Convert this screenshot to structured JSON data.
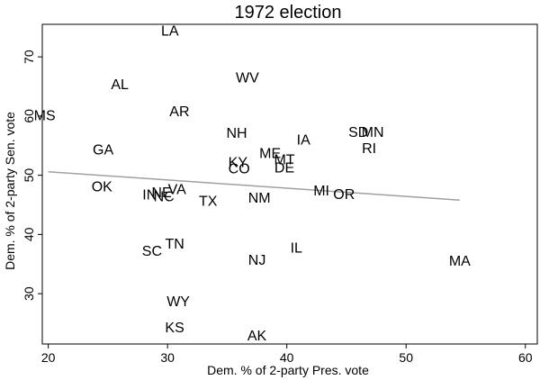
{
  "chart_data": {
    "type": "scatter",
    "title": "1972 election",
    "xlabel": "Dem. % of 2-party Pres. vote",
    "ylabel": "Dem. % of 2-party Sen. vote",
    "xlim": [
      19.5,
      61
    ],
    "ylim": [
      21.5,
      75.5
    ],
    "xticks": [
      "20",
      "30",
      "40",
      "50",
      "60"
    ],
    "yticks": [
      "30",
      "40",
      "50",
      "60",
      "70"
    ],
    "xtick_values": [
      20,
      30,
      40,
      50,
      60
    ],
    "ytick_values": [
      30,
      40,
      50,
      60,
      70
    ],
    "grid": false,
    "fit_line": {
      "x": [
        20,
        54.5
      ],
      "y": [
        50.6,
        45.8
      ],
      "color": "#a0a0a0"
    },
    "points": [
      {
        "label": "LA",
        "x": 30.2,
        "y": 74.3
      },
      {
        "label": "WV",
        "x": 36.7,
        "y": 66.4
      },
      {
        "label": "AL",
        "x": 26.0,
        "y": 65.2
      },
      {
        "label": "AR",
        "x": 31.0,
        "y": 60.7
      },
      {
        "label": "MS",
        "x": 19.7,
        "y": 60.0
      },
      {
        "label": "NH",
        "x": 35.8,
        "y": 57.0
      },
      {
        "label": "SD",
        "x": 46.0,
        "y": 57.2
      },
      {
        "label": "MN",
        "x": 47.2,
        "y": 57.2
      },
      {
        "label": "IA",
        "x": 41.4,
        "y": 55.9
      },
      {
        "label": "RI",
        "x": 46.9,
        "y": 54.4
      },
      {
        "label": "GA",
        "x": 24.6,
        "y": 54.2
      },
      {
        "label": "ME",
        "x": 38.6,
        "y": 53.6
      },
      {
        "label": "MT",
        "x": 39.8,
        "y": 52.5
      },
      {
        "label": "KY",
        "x": 35.9,
        "y": 52.1
      },
      {
        "label": "DE",
        "x": 39.8,
        "y": 51.2
      },
      {
        "label": "CO",
        "x": 36.0,
        "y": 51.0
      },
      {
        "label": "OK",
        "x": 24.5,
        "y": 48.0
      },
      {
        "label": "MI",
        "x": 42.9,
        "y": 47.3
      },
      {
        "label": "VA",
        "x": 30.8,
        "y": 47.5
      },
      {
        "label": "NE",
        "x": 29.5,
        "y": 47.0
      },
      {
        "label": "IN",
        "x": 28.5,
        "y": 46.6
      },
      {
        "label": "NC",
        "x": 29.7,
        "y": 46.3
      },
      {
        "label": "OR",
        "x": 44.8,
        "y": 46.7
      },
      {
        "label": "NM",
        "x": 37.7,
        "y": 46.1
      },
      {
        "label": "TX",
        "x": 33.4,
        "y": 45.5
      },
      {
        "label": "TN",
        "x": 30.6,
        "y": 38.3
      },
      {
        "label": "IL",
        "x": 40.8,
        "y": 37.6
      },
      {
        "label": "SC",
        "x": 28.7,
        "y": 37.1
      },
      {
        "label": "NJ",
        "x": 37.5,
        "y": 35.6
      },
      {
        "label": "MA",
        "x": 54.5,
        "y": 35.4
      },
      {
        "label": "WY",
        "x": 30.9,
        "y": 28.6
      },
      {
        "label": "KS",
        "x": 30.6,
        "y": 24.2
      },
      {
        "label": "AK",
        "x": 37.5,
        "y": 22.8
      }
    ]
  }
}
